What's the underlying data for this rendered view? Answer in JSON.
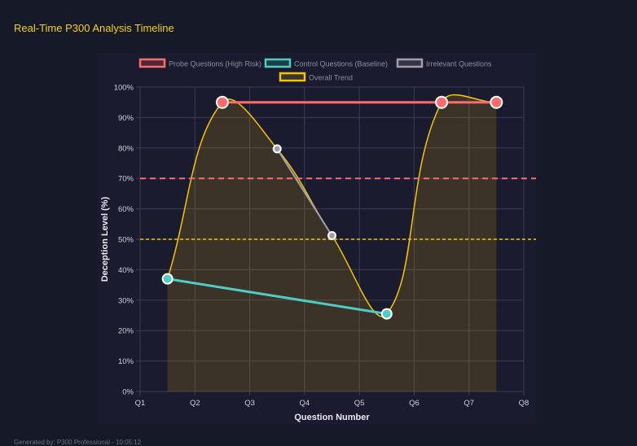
{
  "title": "Real-Time P300 Analysis Timeline",
  "footer": "Generated by: P300 Professional - 10:05:12",
  "chart_data": {
    "type": "line",
    "xlabel": "Question Number",
    "ylabel": "Deception Level (%)",
    "xticks": [
      "Q1",
      "Q2",
      "Q3",
      "Q4",
      "Q5",
      "Q6",
      "Q7",
      "Q8"
    ],
    "xlim": [
      1,
      8
    ],
    "ylim": [
      0,
      100
    ],
    "yticks": [
      "0%",
      "10%",
      "20%",
      "30%",
      "40%",
      "50%",
      "60%",
      "70%",
      "80%",
      "90%",
      "100%"
    ],
    "grid": true,
    "legend_position": "top",
    "series": [
      {
        "name": "Probe Questions (High Risk)",
        "color": "#ff6b6b",
        "x": [
          2.5,
          6.5,
          7.5
        ],
        "values": [
          95,
          95,
          95
        ]
      },
      {
        "name": "Control Questions (Baseline)",
        "color": "#4ecdc4",
        "x": [
          1.5,
          5.5
        ],
        "values": [
          37,
          25.5
        ]
      },
      {
        "name": "Irrelevant Questions",
        "color": "#a0a0a8",
        "x": [
          3.5,
          4.5
        ],
        "values": [
          79.7,
          51.2
        ]
      },
      {
        "name": "Overall Trend",
        "color": "#f5c400",
        "x": [
          1.5,
          2.5,
          3.5,
          4.5,
          5.5,
          6.5,
          7.5
        ],
        "values": [
          37,
          95,
          79.7,
          51.2,
          25.5,
          95,
          95
        ],
        "fill": true,
        "smooth": true
      }
    ],
    "thresholds": [
      {
        "value": 70,
        "color": "#ff6b6b",
        "style": "dashed"
      },
      {
        "value": 50,
        "color": "#f5c400",
        "style": "dotted"
      }
    ]
  }
}
